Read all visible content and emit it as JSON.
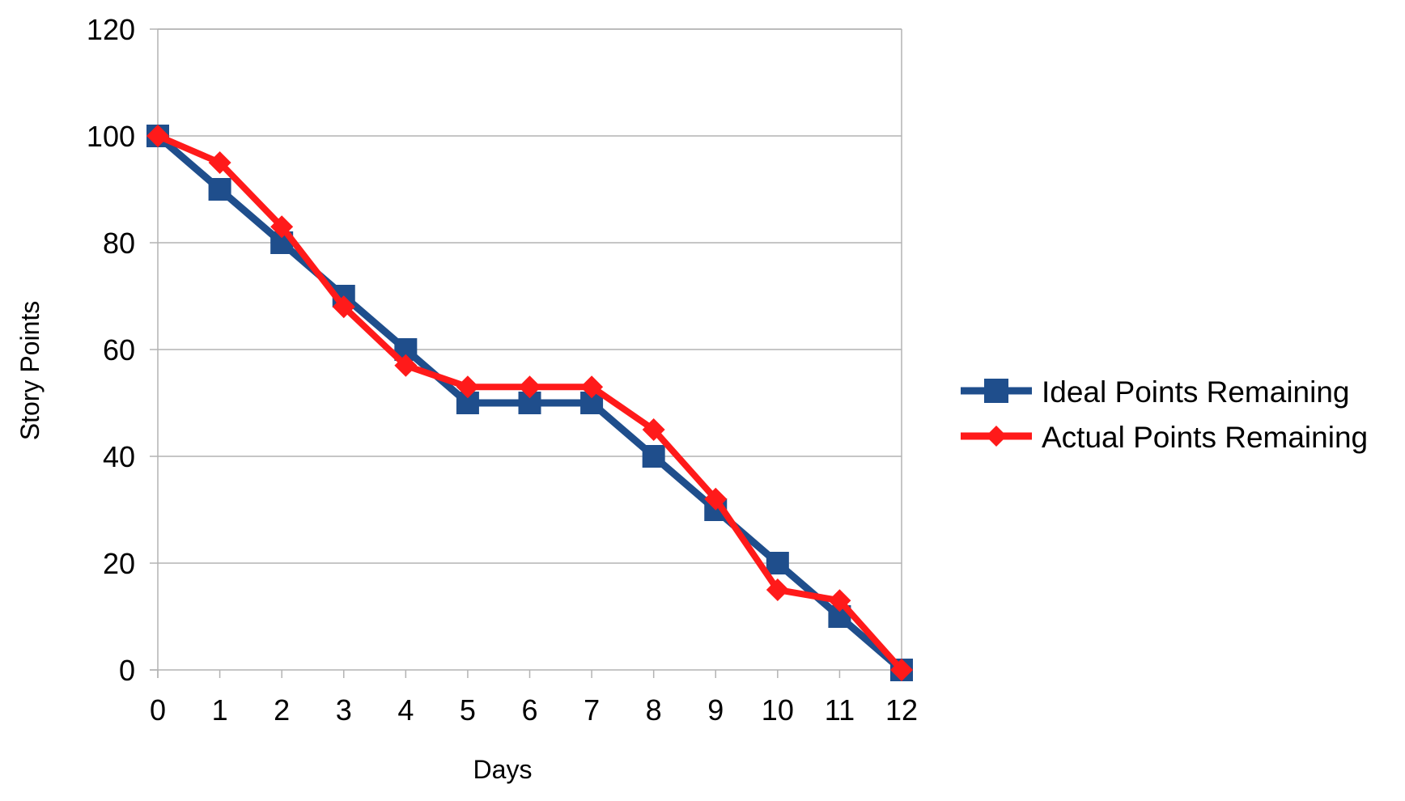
{
  "chart_data": {
    "type": "line",
    "title": "",
    "xlabel": "Days",
    "ylabel": "Story Points",
    "x": [
      0,
      1,
      2,
      3,
      4,
      5,
      6,
      7,
      8,
      9,
      10,
      11,
      12
    ],
    "xlim": [
      0,
      12
    ],
    "ylim": [
      0,
      120
    ],
    "yticks": [
      0,
      20,
      40,
      60,
      80,
      100,
      120
    ],
    "grid": true,
    "legend_position": "right",
    "series": [
      {
        "name": "Ideal Points Remaining",
        "color": "#1f4e8c",
        "marker": "square",
        "values": [
          100,
          90,
          80,
          70,
          60,
          50,
          50,
          50,
          40,
          30,
          20,
          10,
          0
        ]
      },
      {
        "name": "Actual Points Remaining",
        "color": "#ff1a1a",
        "marker": "diamond",
        "values": [
          100,
          95,
          83,
          68,
          57,
          53,
          53,
          53,
          45,
          32,
          15,
          13,
          0
        ]
      }
    ]
  }
}
